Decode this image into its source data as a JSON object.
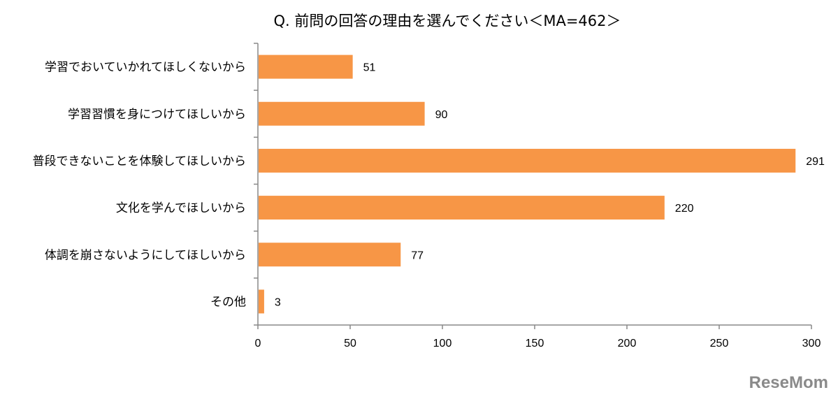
{
  "chart_data": {
    "type": "bar",
    "orientation": "horizontal",
    "title": "Q. 前問の回答の理由を選んでください＜MA=462＞",
    "categories": [
      "学習でおいていかれてほしくないから",
      "学習習慣を身につけてほしいから",
      "普段できないことを体験してほしいから",
      "文化を学んでほしいから",
      "体調を崩さないようにしてほしいから",
      "その他"
    ],
    "values": [
      51,
      90,
      291,
      220,
      77,
      3
    ],
    "xlim": [
      0,
      300
    ],
    "xticks": [
      0,
      50,
      100,
      150,
      200,
      250,
      300
    ],
    "xlabel": "",
    "ylabel": "",
    "grid": false,
    "bar_color": "#F79646"
  },
  "watermark": "ReseMom"
}
